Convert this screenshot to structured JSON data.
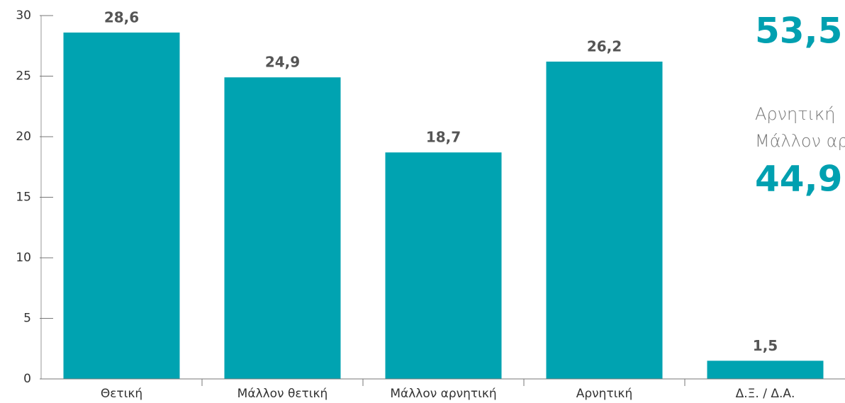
{
  "chart_data": {
    "type": "bar",
    "categories": [
      "Θετική",
      "Μάλλον θετική",
      "Μάλλον αρνητική",
      "Αρνητική",
      "Δ.Ξ. / Δ.Α."
    ],
    "values": [
      28.6,
      24.9,
      18.7,
      26.2,
      1.5
    ],
    "value_labels": [
      "28,6",
      "24,9",
      "18,7",
      "26,2",
      "1,5"
    ],
    "color": "#00a3b1",
    "ylim": [
      0,
      30
    ],
    "yticks": [
      0,
      5,
      10,
      15,
      20,
      25,
      30
    ],
    "annotations": [
      {
        "text": "53,5"
      },
      {
        "text": "Αρνητική"
      },
      {
        "text": "Μάλλον αρνητική"
      },
      {
        "text": "44,9"
      }
    ]
  }
}
